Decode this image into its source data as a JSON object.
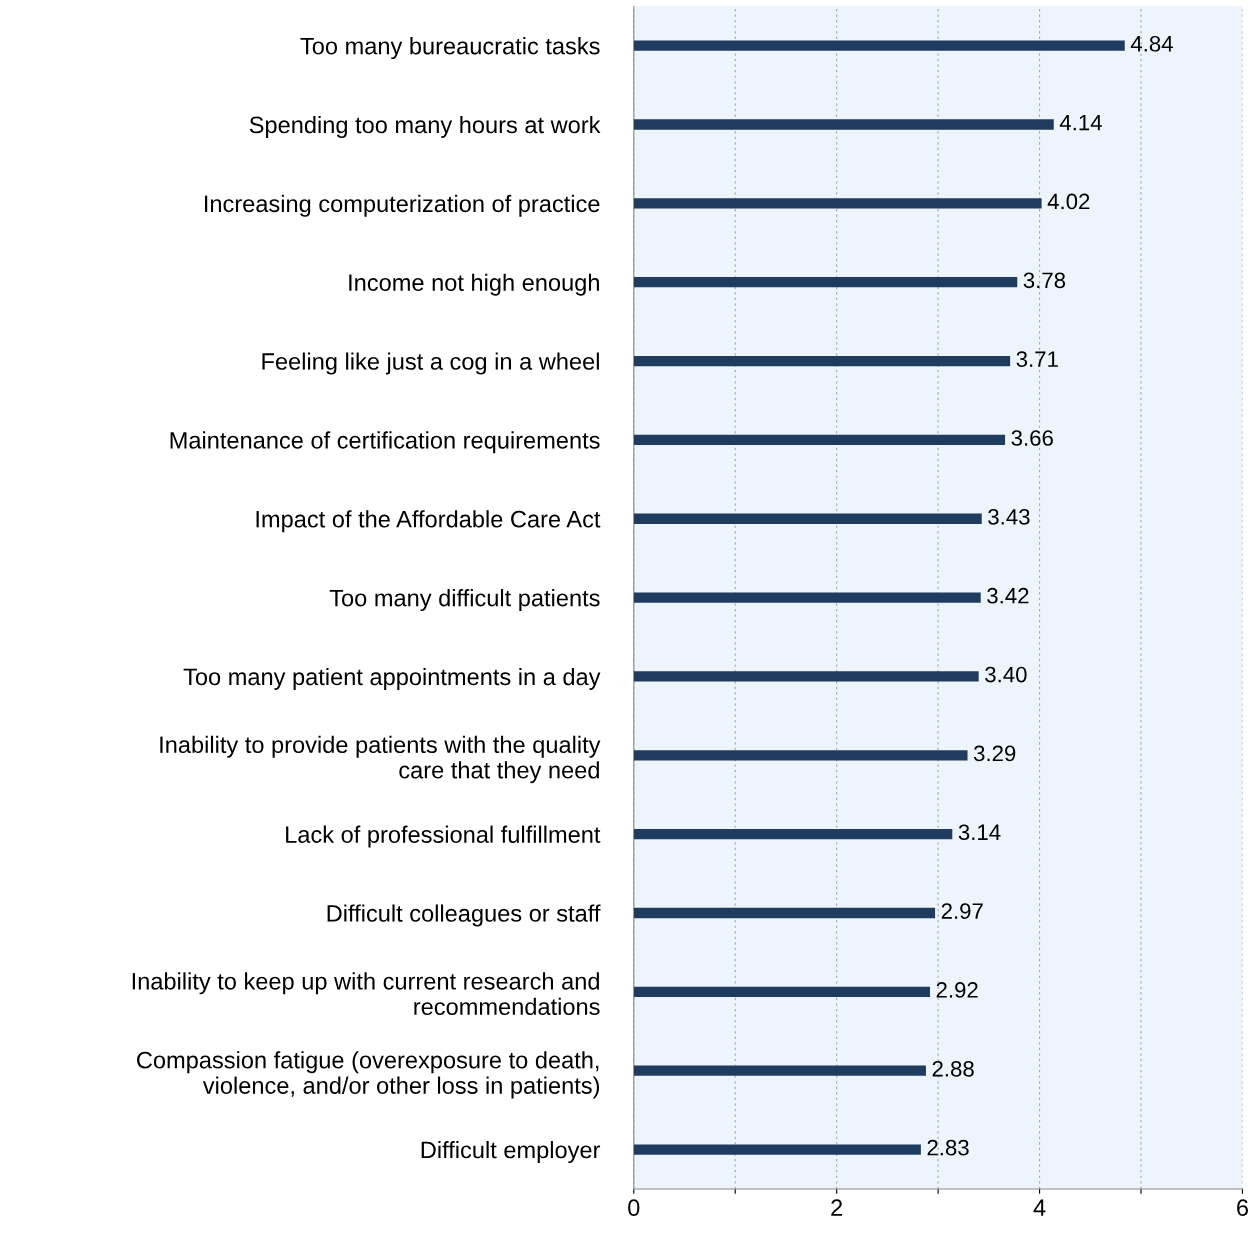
{
  "chart_data": {
    "type": "bar",
    "orientation": "horizontal",
    "categories": [
      "Too many bureaucratic tasks",
      "Spending too many hours at work",
      "Increasing computerization of practice",
      "Income not high enough",
      "Feeling like just a cog in a wheel",
      "Maintenance of certification requirements",
      "Impact of the Affordable Care Act",
      "Too many difficult patients",
      "Too many patient appointments in a day",
      "Inability to provide patients with the quality\ncare that they need",
      "Lack of professional fulfillment",
      "Difficult colleagues or staff",
      "Inability to keep up with current research and\nrecommendations",
      "Compassion fatigue (overexposure to death,\nviolence, and/or other loss in patients)",
      "Difficult employer"
    ],
    "values": [
      4.84,
      4.14,
      4.02,
      3.78,
      3.71,
      3.66,
      3.43,
      3.42,
      3.4,
      3.29,
      3.14,
      2.97,
      2.92,
      2.88,
      2.83
    ],
    "value_labels": [
      "4.84",
      "4.14",
      "4.02",
      "3.78",
      "3.71",
      "3.66",
      "3.43",
      "3.42",
      "3.40",
      "3.29",
      "3.14",
      "2.97",
      "2.92",
      "2.88",
      "2.83"
    ],
    "color": "#1f3b5e",
    "xlim": [
      0,
      6
    ],
    "xticks": [
      0,
      {
        "value": 1,
        "label": null
      },
      2,
      {
        "value": 3,
        "label": null
      },
      4,
      {
        "value": 5,
        "label": null
      },
      6
    ],
    "grid": "x"
  }
}
